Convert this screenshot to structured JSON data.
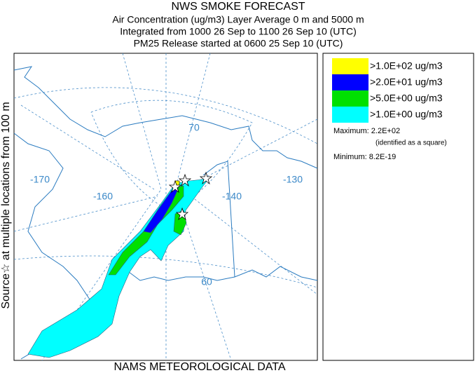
{
  "header": {
    "title": "NWS SMOKE FORECAST",
    "lines": [
      "Air Concentration (ug/m3) Layer Average    0 m and  5000 m",
      "Integrated from 1000 26 Sep to 1100 26 Sep 10 (UTC)",
      "PM25 Release started at 0600 25 Sep 10 (UTC)"
    ]
  },
  "side_label": "Source☆ at multiple locations from  100 m",
  "map": {
    "graticule_labels": [
      "70",
      "-170",
      "-160",
      "-140",
      "-130",
      "60"
    ]
  },
  "legend": {
    "entries": [
      {
        "label": ">1.0E+02 ug/m3",
        "color": "#ffff00"
      },
      {
        "label": ">2.0E+01 ug/m3",
        "color": "#0000ff"
      },
      {
        "label": ">5.0E+00 ug/m3",
        "color": "#00e000"
      },
      {
        "label": ">1.0E+00 ug/m3",
        "color": "#00ffff"
      }
    ],
    "maximum": "Maximum: 2.2E+02",
    "maximum_note": "(identified as a square)",
    "minimum": "Minimum: 8.2E-19"
  },
  "footer": "NAMS METEOROLOGICAL DATA"
}
